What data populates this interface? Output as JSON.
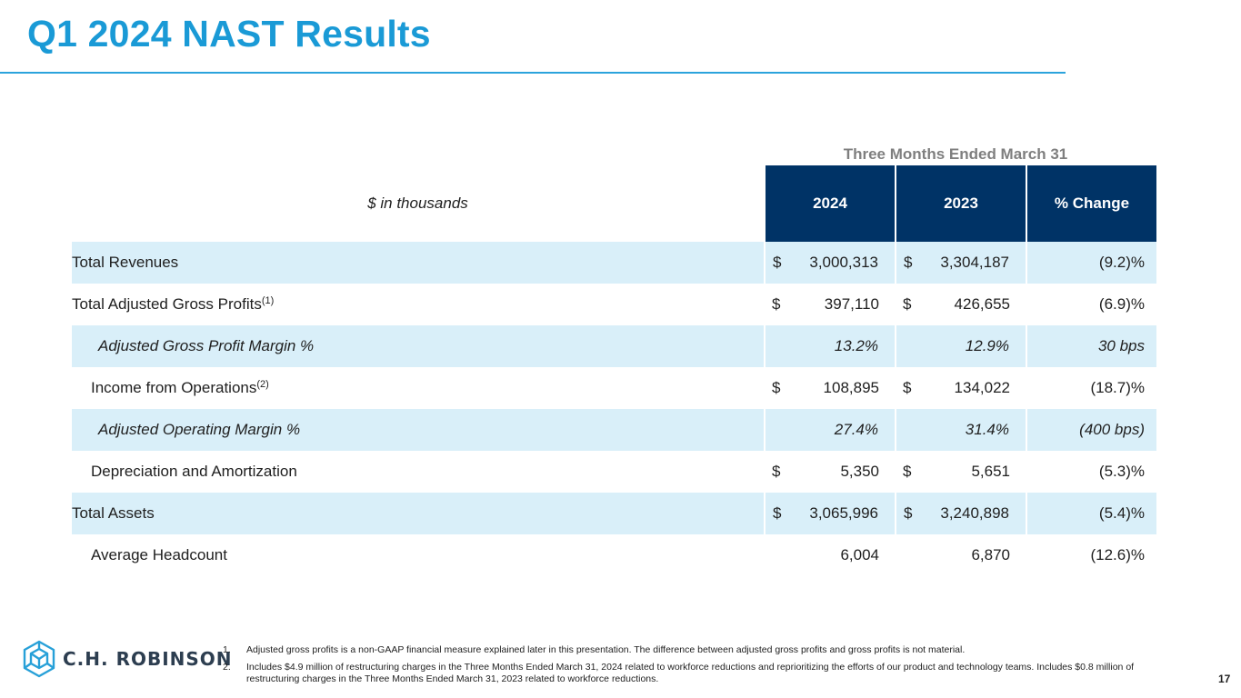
{
  "title": "Q1 2024 NAST Results",
  "table": {
    "period": "Three Months Ended March 31",
    "units_label": "$ in thousands",
    "columns": [
      "2024",
      "2023",
      "% Change"
    ],
    "rows": [
      {
        "label": "Total Revenues",
        "sup": "",
        "c2024": {
          "dollar": "$",
          "value": "3,000,313"
        },
        "c2023": {
          "dollar": "$",
          "value": "3,304,187"
        },
        "change": "(9.2)%"
      },
      {
        "label": "Total Adjusted Gross Profits",
        "sup": "(1)",
        "c2024": {
          "dollar": "$",
          "value": "397,110"
        },
        "c2023": {
          "dollar": "$",
          "value": "426,655"
        },
        "change": "(6.9)%"
      },
      {
        "label": "Adjusted Gross Profit Margin %",
        "sup": "",
        "c2024": {
          "dollar": "",
          "value": "13.2%"
        },
        "c2023": {
          "dollar": "",
          "value": "12.9%"
        },
        "change": "30 bps"
      },
      {
        "label": "Income from Operations",
        "sup": "(2)",
        "c2024": {
          "dollar": "$",
          "value": "108,895"
        },
        "c2023": {
          "dollar": "$",
          "value": "134,022"
        },
        "change": "(18.7)%"
      },
      {
        "label": "Adjusted Operating Margin %",
        "sup": "",
        "c2024": {
          "dollar": "",
          "value": "27.4%"
        },
        "c2023": {
          "dollar": "",
          "value": "31.4%"
        },
        "change": "(400 bps)"
      },
      {
        "label": "Depreciation and Amortization",
        "sup": "",
        "c2024": {
          "dollar": "$",
          "value": "5,350"
        },
        "c2023": {
          "dollar": "$",
          "value": "5,651"
        },
        "change": "(5.3)%"
      },
      {
        "label": "Total Assets",
        "sup": "",
        "c2024": {
          "dollar": "$",
          "value": "3,065,996"
        },
        "c2023": {
          "dollar": "$",
          "value": "3,240,898"
        },
        "change": "(5.4)%"
      },
      {
        "label": "Average Headcount",
        "sup": "",
        "c2024": {
          "dollar": "",
          "value": "6,004"
        },
        "c2023": {
          "dollar": "",
          "value": "6,870"
        },
        "change": "(12.6)%"
      }
    ]
  },
  "logo": {
    "text": "C.H. ROBINSON",
    "icon": "cube-logo-icon"
  },
  "footnotes": [
    {
      "num": "1.",
      "text": "Adjusted gross profits is a non-GAAP financial measure explained later in this presentation. The difference between adjusted gross profits and gross profits is not material."
    },
    {
      "num": "2.",
      "text": "Includes $4.9 million of restructuring charges in the Three Months Ended March 31, 2024 related to workforce reductions and reprioritizing the efforts of our product and technology teams. Includes $0.8 million of restructuring charges in the Three Months Ended March 31, 2023 related to workforce reductions."
    }
  ],
  "page_number": "17",
  "colors": {
    "title": "#1a9ad6",
    "header_bg": "#003366",
    "row_shade": "#d9eff9"
  }
}
